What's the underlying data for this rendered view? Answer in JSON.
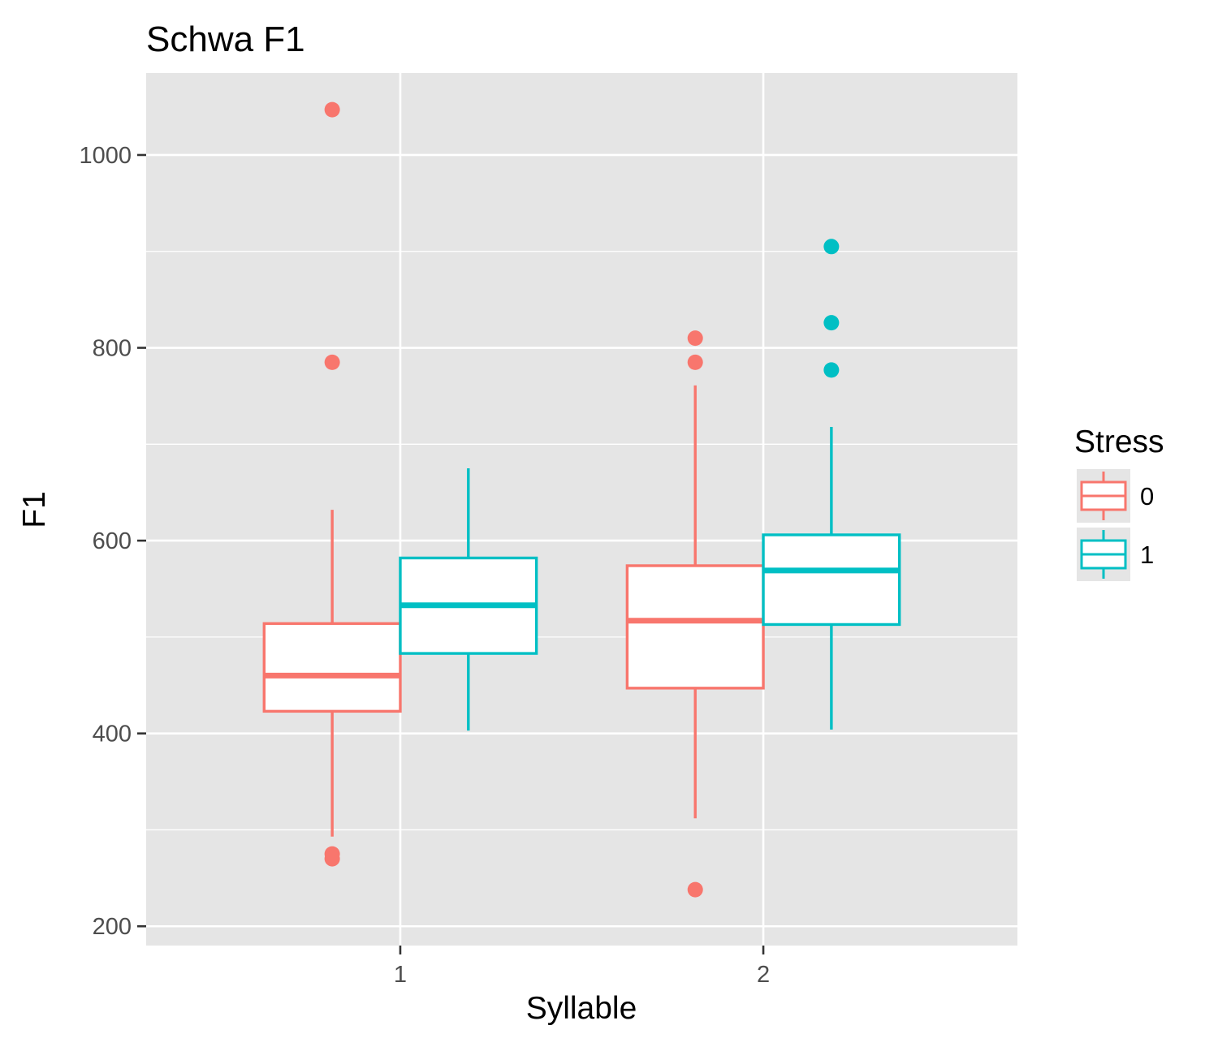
{
  "chart_data": {
    "type": "boxplot",
    "title": "Schwa F1",
    "xlabel": "Syllable",
    "ylabel": "F1",
    "categories": [
      "1",
      "2"
    ],
    "ylim": [
      180,
      1085
    ],
    "yticks": [
      200,
      400,
      600,
      800,
      1000
    ],
    "grid": true,
    "legend": {
      "title": "Stress",
      "position": "right"
    },
    "series": [
      {
        "name": "0",
        "color": "#F8766D",
        "boxes": [
          {
            "category": "1",
            "min": 293,
            "q1": 423,
            "median": 460,
            "q3": 514,
            "max": 632,
            "outliers": [
              1047,
              785,
              275,
              270
            ]
          },
          {
            "category": "2",
            "min": 312,
            "q1": 447,
            "median": 517,
            "q3": 574,
            "max": 761,
            "outliers": [
              810,
              785,
              238
            ]
          }
        ]
      },
      {
        "name": "1",
        "color": "#00BFC4",
        "boxes": [
          {
            "category": "1",
            "min": 403,
            "q1": 483,
            "median": 533,
            "q3": 582,
            "max": 675,
            "outliers": []
          },
          {
            "category": "2",
            "min": 404,
            "q1": 513,
            "median": 569,
            "q3": 606,
            "max": 718,
            "outliers": [
              905,
              826,
              777
            ]
          }
        ]
      }
    ]
  }
}
